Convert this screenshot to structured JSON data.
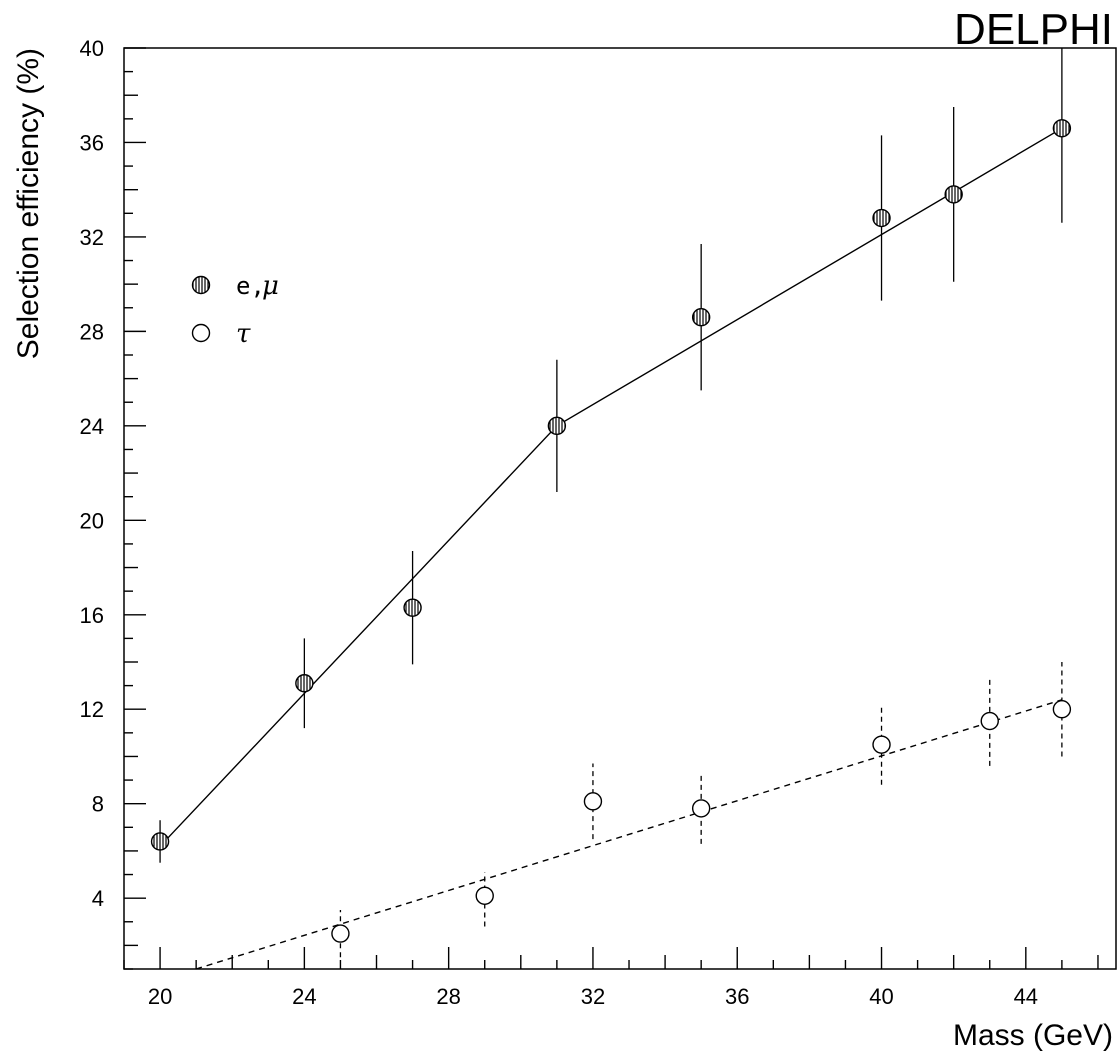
{
  "chart_data": {
    "type": "scatter",
    "experiment_label": "DELPHI",
    "xlabel": "Mass (GeV)",
    "ylabel": "Selection efficiency (%)",
    "xlim": [
      19,
      46.5
    ],
    "ylim": [
      1,
      40
    ],
    "xticks": [
      20,
      24,
      28,
      32,
      36,
      40,
      44
    ],
    "yticks": [
      4,
      8,
      12,
      16,
      20,
      24,
      28,
      32,
      36,
      40
    ],
    "grid": false,
    "legend_placement": "top-left",
    "series": [
      {
        "name": "e,μ",
        "legend_label": "e,",
        "legend_symbol": "μ",
        "marker": "hatched-circle",
        "line_style": "solid",
        "points": [
          {
            "x": 20,
            "y": 6.4,
            "yerr_low": 0.9,
            "yerr_high": 0.9
          },
          {
            "x": 24,
            "y": 13.1,
            "yerr_low": 1.9,
            "yerr_high": 1.9
          },
          {
            "x": 27,
            "y": 16.3,
            "yerr_low": 2.4,
            "yerr_high": 2.4
          },
          {
            "x": 31,
            "y": 24.0,
            "yerr_low": 2.8,
            "yerr_high": 2.8
          },
          {
            "x": 35,
            "y": 28.6,
            "yerr_low": 3.1,
            "yerr_high": 3.1
          },
          {
            "x": 40,
            "y": 32.8,
            "yerr_low": 3.5,
            "yerr_high": 3.5
          },
          {
            "x": 42,
            "y": 33.8,
            "yerr_low": 3.7,
            "yerr_high": 3.7
          },
          {
            "x": 45,
            "y": 36.6,
            "yerr_low": 4.0,
            "yerr_high": 4.0
          }
        ],
        "fit_line": [
          [
            20,
            6.2
          ],
          [
            31,
            24.0
          ],
          [
            45,
            36.6
          ]
        ]
      },
      {
        "name": "τ",
        "legend_label": "",
        "legend_symbol": "τ",
        "marker": "open-circle",
        "line_style": "dashed",
        "points": [
          {
            "x": 25,
            "y": 2.5,
            "yerr_low": 1.0,
            "yerr_high": 1.0
          },
          {
            "x": 29,
            "y": 4.1,
            "yerr_low": 1.3,
            "yerr_high": 1.0
          },
          {
            "x": 32,
            "y": 8.1,
            "yerr_low": 1.6,
            "yerr_high": 1.6
          },
          {
            "x": 35,
            "y": 7.8,
            "yerr_low": 1.5,
            "yerr_high": 1.5
          },
          {
            "x": 40,
            "y": 10.5,
            "yerr_low": 1.7,
            "yerr_high": 1.6
          },
          {
            "x": 43,
            "y": 11.5,
            "yerr_low": 1.9,
            "yerr_high": 1.9
          },
          {
            "x": 45,
            "y": 12.0,
            "yerr_low": 2.0,
            "yerr_high": 2.0
          }
        ],
        "fit_line": [
          [
            21,
            1.0
          ],
          [
            45,
            12.4
          ]
        ]
      }
    ]
  }
}
